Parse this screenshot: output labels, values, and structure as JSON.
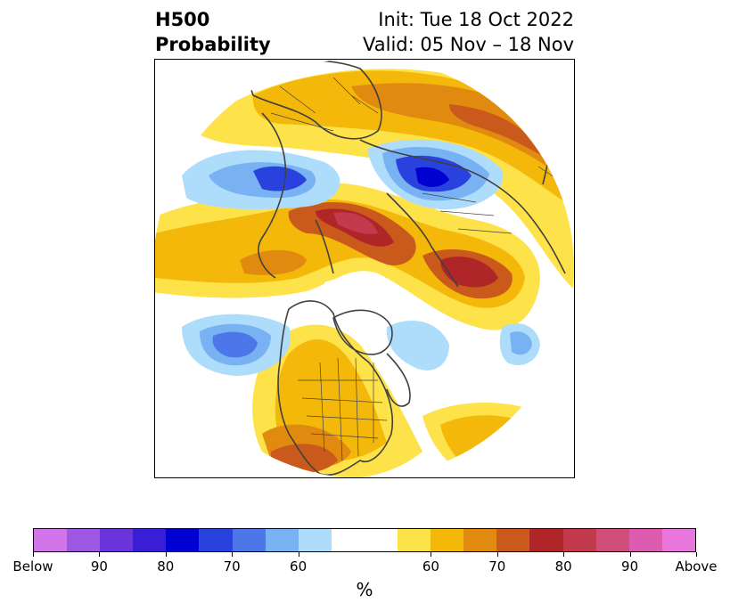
{
  "header": {
    "title_line1": "H500",
    "title_line2": "Probability",
    "init": "Init: Tue 18 Oct 2022",
    "valid": "Valid: 05 Nov – 18 Nov"
  },
  "colorbar": {
    "label": "%",
    "colors": [
      "#d275ea",
      "#9e57e3",
      "#6b35dc",
      "#3a1ed6",
      "#0000d1",
      "#2a42dd",
      "#4d77e8",
      "#79b2f3",
      "#aedcfb",
      "#ffffff",
      "#ffffff",
      "#fde24a",
      "#f4b80a",
      "#e08b10",
      "#c95a1b",
      "#b02528",
      "#c23a4c",
      "#cf4e7a",
      "#dc5daf",
      "#e876dc"
    ],
    "ticks": [
      "Below",
      "90",
      "80",
      "70",
      "60",
      "60",
      "70",
      "80",
      "90",
      "Above"
    ]
  },
  "palette": {
    "above_light": "#fde24a",
    "above_60": "#f4b80a",
    "above_70": "#e08b10",
    "above_75": "#c95a1b",
    "above_80": "#b02528",
    "above_85": "#c23a4c",
    "below_light": "#aedcfb",
    "below_60": "#79b2f3",
    "below_70": "#4d77e8",
    "below_75": "#2a42dd",
    "below_80": "#0000d1",
    "below_85": "#3a1ed6",
    "coast": "#404040"
  }
}
